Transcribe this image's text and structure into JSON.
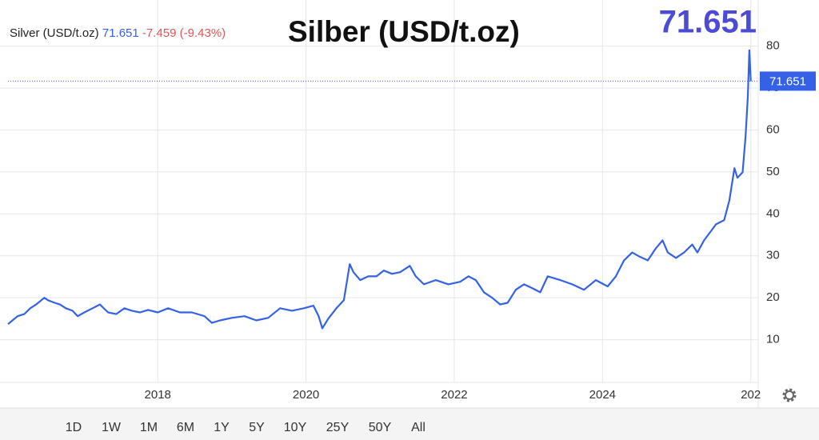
{
  "chart_data": {
    "type": "line",
    "title": "Silber (USD/t.oz)",
    "header": {
      "name": "Silver (USD/t.oz)",
      "change": -7.459,
      "change_percent": "(-9.43%)"
    },
    "last_value": 71.651,
    "color": "#3461e6",
    "x": [
      2015.98,
      2016.04,
      2016.11,
      2016.2,
      2016.28,
      2016.36,
      2016.47,
      2016.52,
      2016.61,
      2016.68,
      2016.76,
      2016.85,
      2016.92,
      2017.01,
      2017.12,
      2017.22,
      2017.33,
      2017.44,
      2017.55,
      2017.65,
      2017.76,
      2017.87,
      2018.0,
      2018.14,
      2018.3,
      2018.46,
      2018.63,
      2018.73,
      2018.84,
      2019.0,
      2019.17,
      2019.33,
      2019.49,
      2019.65,
      2019.81,
      2019.97,
      2020.1,
      2020.17,
      2020.22,
      2020.3,
      2020.41,
      2020.51,
      2020.59,
      2020.64,
      2020.73,
      2020.84,
      2020.95,
      2021.05,
      2021.16,
      2021.27,
      2021.4,
      2021.48,
      2021.59,
      2021.75,
      2021.92,
      2022.08,
      2022.19,
      2022.29,
      2022.4,
      2022.51,
      2022.62,
      2022.72,
      2022.83,
      2022.94,
      2023.05,
      2023.16,
      2023.26,
      2023.43,
      2023.59,
      2023.75,
      2023.91,
      2024.07,
      2024.18,
      2024.29,
      2024.4,
      2024.5,
      2024.61,
      2024.72,
      2024.81,
      2024.88,
      2024.99,
      2025.1,
      2025.21,
      2025.28,
      2025.37,
      2025.45,
      2025.53,
      2025.64,
      2025.71,
      2025.78,
      2025.82,
      2025.89,
      2025.93,
      2025.96,
      2025.98,
      2026.0
    ],
    "values": [
      13.7,
      14.6,
      15.6,
      16.1,
      17.5,
      18.4,
      20.0,
      19.4,
      18.8,
      18.4,
      17.5,
      16.9,
      15.6,
      16.5,
      17.5,
      18.4,
      16.5,
      16.1,
      17.5,
      16.9,
      16.5,
      17.1,
      16.5,
      17.5,
      16.5,
      16.5,
      15.6,
      14.0,
      14.6,
      15.2,
      15.6,
      14.6,
      15.2,
      17.5,
      16.9,
      17.5,
      18.1,
      15.6,
      12.7,
      15.0,
      17.5,
      19.4,
      28.0,
      26.1,
      24.2,
      25.1,
      25.1,
      26.5,
      25.7,
      26.1,
      27.6,
      25.1,
      23.2,
      24.2,
      23.2,
      23.8,
      25.1,
      24.2,
      21.3,
      20.0,
      18.4,
      18.8,
      21.9,
      23.2,
      22.3,
      21.3,
      25.1,
      24.2,
      23.2,
      21.9,
      24.2,
      22.7,
      25.1,
      28.9,
      30.8,
      29.8,
      28.9,
      31.8,
      33.7,
      30.8,
      29.5,
      30.8,
      32.7,
      30.8,
      33.7,
      35.6,
      37.5,
      38.5,
      43.2,
      50.9,
      48.6,
      49.9,
      58.5,
      68.0,
      79.0,
      71.651
    ],
    "xlim": [
      2015.98,
      2026.1
    ],
    "xticks": [
      2018,
      2020,
      2022,
      2024,
      {
        "value": 2026,
        "label": "202"
      }
    ],
    "ylim": [
      0,
      91
    ],
    "yticks": [
      10,
      20,
      30,
      40,
      50,
      60,
      70,
      80
    ],
    "grid": true,
    "ranges": [
      "1D",
      "1W",
      "1M",
      "6M",
      "1Y",
      "5Y",
      "10Y",
      "25Y",
      "50Y",
      "All"
    ],
    "selected_range": "10Y"
  }
}
